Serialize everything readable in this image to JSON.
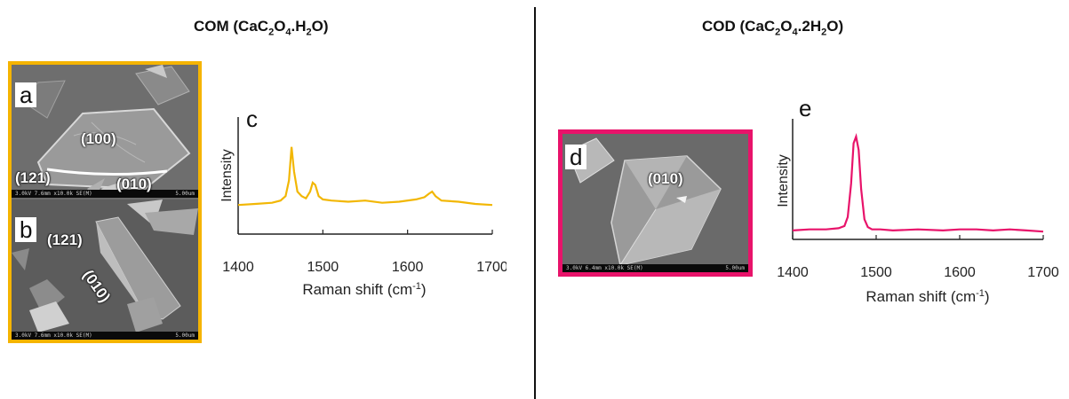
{
  "left": {
    "title": "COM (CaC",
    "title_sub1": "2",
    "title_mid": "O",
    "title_sub2": "4",
    "title_tail": ".H",
    "title_sub3": "2",
    "title_end": "O)",
    "frame_color": "#f5b400",
    "panel_a": {
      "letter": "a",
      "faces": [
        "(100)",
        "(121)",
        "(010)"
      ],
      "infobar": "3.0kV 7.6mm x10.0k SE(M)",
      "scale": "5.00um"
    },
    "panel_b": {
      "letter": "b",
      "faces": [
        "(121)",
        "(010)"
      ],
      "infobar": "3.0kV 7.6mm x10.0k SE(M)",
      "scale": "5.00um"
    }
  },
  "right": {
    "title": "COD (CaC",
    "title_sub1": "2",
    "title_mid": "O",
    "title_sub2": "4",
    "title_tail": ".2H",
    "title_sub3": "2",
    "title_end": "O)",
    "frame_color": "#e8136a",
    "panel_d": {
      "letter": "d",
      "faces": [
        "(010)"
      ],
      "infobar": "3.0kV 6.4mm x10.0k SE(M)",
      "scale": "5.00um"
    }
  },
  "chart_data": [
    {
      "type": "line",
      "panel": "c",
      "xlabel": "Raman shift (cm",
      "xlabel_sup": "-1",
      "xlabel_end": ")",
      "ylabel": "Intensity",
      "xlim": [
        1400,
        1700
      ],
      "xticks": [
        "1400",
        "1500",
        "1600",
        "1700"
      ],
      "ylim": [
        0,
        1
      ],
      "color": "#f2b705",
      "series": [
        {
          "x": [
            1400,
            1420,
            1440,
            1450,
            1456,
            1460,
            1463,
            1466,
            1470,
            1475,
            1480,
            1485,
            1488,
            1491,
            1495,
            1500,
            1510,
            1530,
            1550,
            1570,
            1590,
            1610,
            1620,
            1625,
            1629,
            1633,
            1640,
            1660,
            1680,
            1700
          ],
          "values": [
            0.26,
            0.27,
            0.28,
            0.3,
            0.34,
            0.48,
            0.78,
            0.56,
            0.38,
            0.34,
            0.32,
            0.38,
            0.46,
            0.44,
            0.34,
            0.31,
            0.3,
            0.29,
            0.3,
            0.28,
            0.29,
            0.31,
            0.33,
            0.36,
            0.38,
            0.34,
            0.3,
            0.29,
            0.27,
            0.26
          ]
        }
      ]
    },
    {
      "type": "line",
      "panel": "e",
      "xlabel": "Raman shift (cm",
      "xlabel_sup": "-1",
      "xlabel_end": ")",
      "ylabel": "Intensity",
      "xlim": [
        1400,
        1700
      ],
      "xticks": [
        "1400",
        "1500",
        "1600",
        "1700"
      ],
      "ylim": [
        0,
        1
      ],
      "color": "#e8136a",
      "series": [
        {
          "x": [
            1400,
            1420,
            1440,
            1455,
            1462,
            1466,
            1470,
            1473,
            1476,
            1479,
            1482,
            1486,
            1490,
            1495,
            1505,
            1520,
            1550,
            1580,
            1600,
            1620,
            1640,
            1660,
            1680,
            1700
          ],
          "values": [
            0.08,
            0.09,
            0.09,
            0.1,
            0.12,
            0.2,
            0.5,
            0.86,
            0.92,
            0.8,
            0.45,
            0.18,
            0.11,
            0.09,
            0.09,
            0.08,
            0.09,
            0.08,
            0.09,
            0.09,
            0.08,
            0.09,
            0.08,
            0.07
          ]
        }
      ]
    }
  ]
}
